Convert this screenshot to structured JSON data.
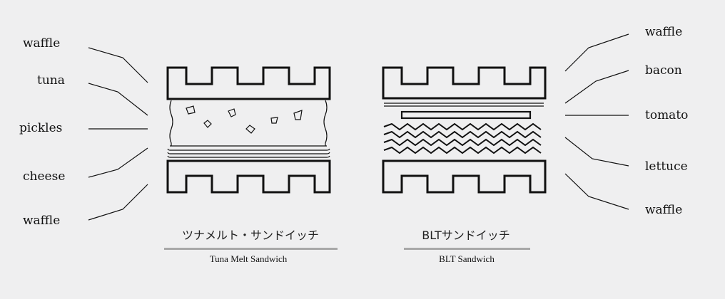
{
  "colors": {
    "background": "#efeff0",
    "ink": "#111111",
    "underline": "#a8a8a8"
  },
  "tuna_melt": {
    "labels": {
      "top_waffle": "waffle",
      "tuna": "tuna",
      "pickles": "pickles",
      "cheese": "cheese",
      "bottom_waffle": "waffle"
    },
    "title_jp": "ツナメルト・サンドイッチ",
    "title_en": "Tuna Melt Sandwich"
  },
  "blt": {
    "labels": {
      "top_waffle": "waffle",
      "bacon": "bacon",
      "tomato": "tomato",
      "lettuce": "lettuce",
      "bottom_waffle": "waffle"
    },
    "title_jp": "BLTサンドイッチ",
    "title_en": "BLT Sandwich"
  }
}
